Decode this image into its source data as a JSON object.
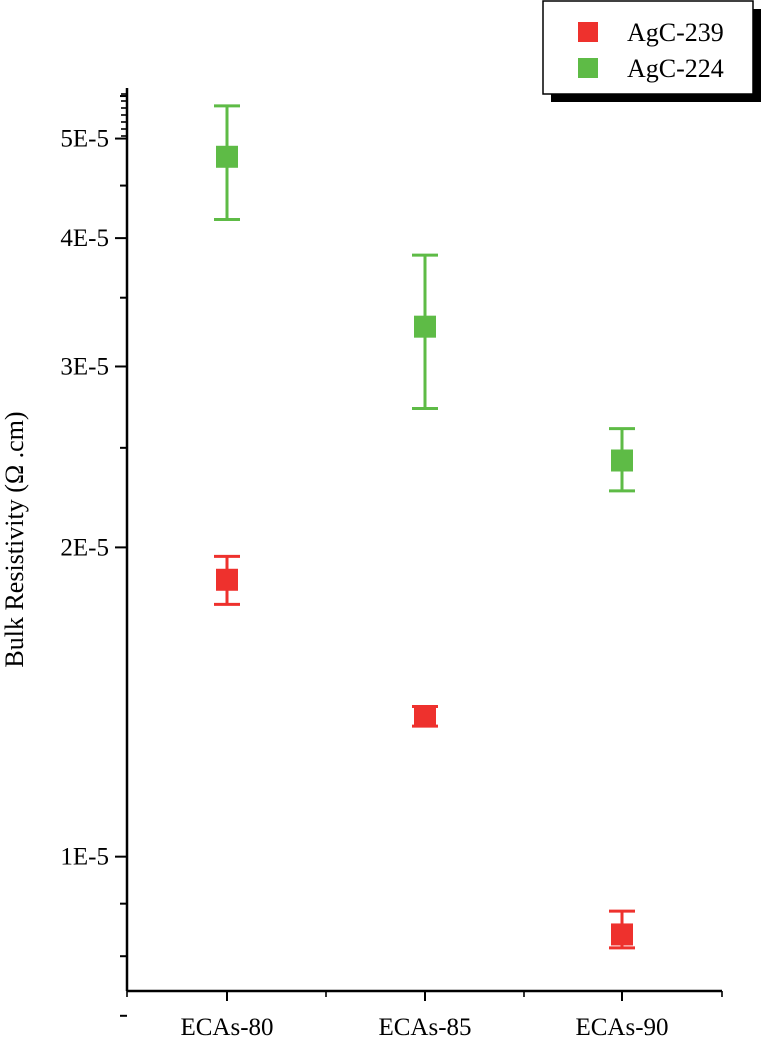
{
  "chart_data": {
    "type": "scatter",
    "categories": [
      "ECAs-80",
      "ECAs-85",
      "ECAs-90"
    ],
    "ylabel": "Bulk Resistivity (Ω .cm)",
    "yscale": "log",
    "ylim": [
      7.4e-06,
      5.6e-05
    ],
    "yticks": [
      {
        "value": 1e-05,
        "label": "1E-5"
      },
      {
        "value": 2e-05,
        "label": "2E-5"
      },
      {
        "value": 3e-05,
        "label": "3E-5"
      },
      {
        "value": 4e-05,
        "label": "4E-5"
      },
      {
        "value": 5e-05,
        "label": "5E-5"
      }
    ],
    "minor_ticks": [
      9e-06,
      8e-06,
      7e-06,
      6e-06,
      2.5e-05,
      3.5e-05,
      4.5e-05,
      5.5e-05
    ],
    "legend_position": "top-right",
    "series": [
      {
        "name": "AgC-239",
        "color": "#ee312d",
        "values": [
          1.86e-05,
          1.37e-05,
          8.4e-06
        ],
        "err_low": [
          1.76e-05,
          1.34e-05,
          8.15e-06
        ],
        "err_high": [
          1.96e-05,
          1.4e-05,
          8.85e-06
        ]
      },
      {
        "name": "AgC-224",
        "color": "#5ebb46",
        "values": [
          4.8e-05,
          3.28e-05,
          2.43e-05
        ],
        "err_low": [
          4.17e-05,
          2.73e-05,
          2.27e-05
        ],
        "err_high": [
          5.38e-05,
          3.85e-05,
          2.61e-05
        ]
      }
    ]
  }
}
